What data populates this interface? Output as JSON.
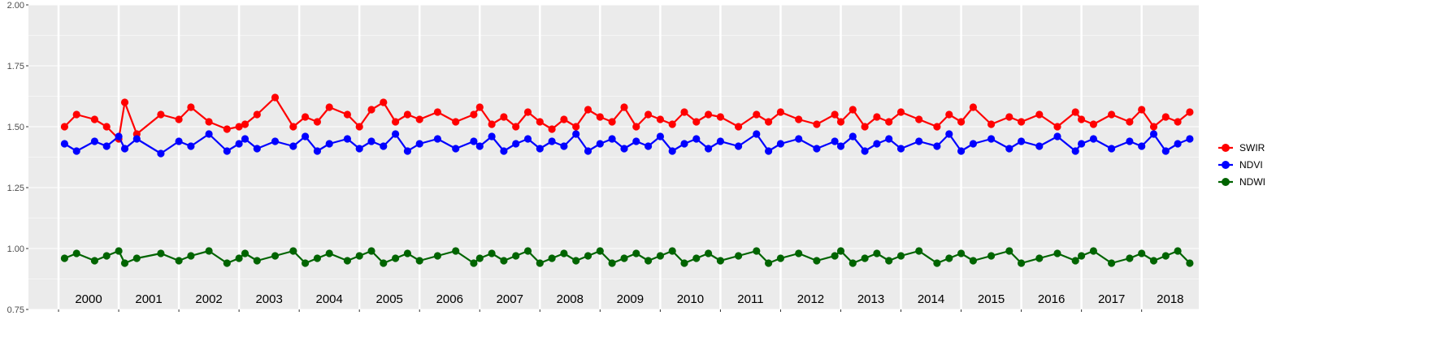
{
  "chart_data": {
    "type": "line",
    "title": "",
    "xlabel": "",
    "ylabel": "",
    "ylim": [
      0.75,
      2.0
    ],
    "yticks": [
      "0.75",
      "1.00",
      "1.25",
      "1.50",
      "1.75",
      "2.00"
    ],
    "xlim": [
      1999.5,
      2018.95
    ],
    "years": [
      "2000",
      "2001",
      "2002",
      "2003",
      "2004",
      "2005",
      "2006",
      "2007",
      "2008",
      "2009",
      "2010",
      "2011",
      "2012",
      "2013",
      "2014",
      "2015",
      "2016",
      "2017",
      "2018"
    ],
    "grid": true,
    "legend_position": "right",
    "series": [
      {
        "name": "SWIR",
        "color": "#ff0000",
        "x": [
          2000.1,
          2000.3,
          2000.6,
          2000.8,
          2001.0,
          2001.1,
          2001.3,
          2001.7,
          2002.0,
          2002.2,
          2002.5,
          2002.8,
          2003.0,
          2003.1,
          2003.3,
          2003.6,
          2003.9,
          2004.1,
          2004.3,
          2004.5,
          2004.8,
          2005.0,
          2005.2,
          2005.4,
          2005.6,
          2005.8,
          2006.0,
          2006.3,
          2006.6,
          2006.9,
          2007.0,
          2007.2,
          2007.4,
          2007.6,
          2007.8,
          2008.0,
          2008.2,
          2008.4,
          2008.6,
          2008.8,
          2009.0,
          2009.2,
          2009.4,
          2009.6,
          2009.8,
          2010.0,
          2010.2,
          2010.4,
          2010.6,
          2010.8,
          2011.0,
          2011.3,
          2011.6,
          2011.8,
          2012.0,
          2012.3,
          2012.6,
          2012.9,
          2013.0,
          2013.2,
          2013.4,
          2013.6,
          2013.8,
          2014.0,
          2014.3,
          2014.6,
          2014.8,
          2015.0,
          2015.2,
          2015.5,
          2015.8,
          2016.0,
          2016.3,
          2016.6,
          2016.9,
          2017.0,
          2017.2,
          2017.5,
          2017.8,
          2018.0,
          2018.2,
          2018.4,
          2018.6,
          2018.8
        ],
        "y": [
          1.5,
          1.55,
          1.53,
          1.5,
          1.45,
          1.6,
          1.47,
          1.55,
          1.53,
          1.58,
          1.52,
          1.49,
          1.5,
          1.51,
          1.55,
          1.62,
          1.5,
          1.54,
          1.52,
          1.58,
          1.55,
          1.5,
          1.57,
          1.6,
          1.52,
          1.55,
          1.53,
          1.56,
          1.52,
          1.55,
          1.58,
          1.51,
          1.54,
          1.5,
          1.56,
          1.52,
          1.49,
          1.53,
          1.5,
          1.57,
          1.54,
          1.52,
          1.58,
          1.5,
          1.55,
          1.53,
          1.51,
          1.56,
          1.52,
          1.55,
          1.54,
          1.5,
          1.55,
          1.52,
          1.56,
          1.53,
          1.51,
          1.55,
          1.52,
          1.57,
          1.5,
          1.54,
          1.52,
          1.56,
          1.53,
          1.5,
          1.55,
          1.52,
          1.58,
          1.51,
          1.54,
          1.52,
          1.55,
          1.5,
          1.56,
          1.53,
          1.51,
          1.55,
          1.52,
          1.57,
          1.5,
          1.54,
          1.52,
          1.56
        ]
      },
      {
        "name": "NDVI",
        "color": "#0000ff",
        "x": [
          2000.1,
          2000.3,
          2000.6,
          2000.8,
          2001.0,
          2001.1,
          2001.3,
          2001.7,
          2002.0,
          2002.2,
          2002.5,
          2002.8,
          2003.0,
          2003.1,
          2003.3,
          2003.6,
          2003.9,
          2004.1,
          2004.3,
          2004.5,
          2004.8,
          2005.0,
          2005.2,
          2005.4,
          2005.6,
          2005.8,
          2006.0,
          2006.3,
          2006.6,
          2006.9,
          2007.0,
          2007.2,
          2007.4,
          2007.6,
          2007.8,
          2008.0,
          2008.2,
          2008.4,
          2008.6,
          2008.8,
          2009.0,
          2009.2,
          2009.4,
          2009.6,
          2009.8,
          2010.0,
          2010.2,
          2010.4,
          2010.6,
          2010.8,
          2011.0,
          2011.3,
          2011.6,
          2011.8,
          2012.0,
          2012.3,
          2012.6,
          2012.9,
          2013.0,
          2013.2,
          2013.4,
          2013.6,
          2013.8,
          2014.0,
          2014.3,
          2014.6,
          2014.8,
          2015.0,
          2015.2,
          2015.5,
          2015.8,
          2016.0,
          2016.3,
          2016.6,
          2016.9,
          2017.0,
          2017.2,
          2017.5,
          2017.8,
          2018.0,
          2018.2,
          2018.4,
          2018.6,
          2018.8
        ],
        "y": [
          1.43,
          1.4,
          1.44,
          1.42,
          1.46,
          1.41,
          1.45,
          1.39,
          1.44,
          1.42,
          1.47,
          1.4,
          1.43,
          1.45,
          1.41,
          1.44,
          1.42,
          1.46,
          1.4,
          1.43,
          1.45,
          1.41,
          1.44,
          1.42,
          1.47,
          1.4,
          1.43,
          1.45,
          1.41,
          1.44,
          1.42,
          1.46,
          1.4,
          1.43,
          1.45,
          1.41,
          1.44,
          1.42,
          1.47,
          1.4,
          1.43,
          1.45,
          1.41,
          1.44,
          1.42,
          1.46,
          1.4,
          1.43,
          1.45,
          1.41,
          1.44,
          1.42,
          1.47,
          1.4,
          1.43,
          1.45,
          1.41,
          1.44,
          1.42,
          1.46,
          1.4,
          1.43,
          1.45,
          1.41,
          1.44,
          1.42,
          1.47,
          1.4,
          1.43,
          1.45,
          1.41,
          1.44,
          1.42,
          1.46,
          1.4,
          1.43,
          1.45,
          1.41,
          1.44,
          1.42,
          1.47,
          1.4,
          1.43,
          1.45
        ]
      },
      {
        "name": "NDWI",
        "color": "#006400",
        "x": [
          2000.1,
          2000.3,
          2000.6,
          2000.8,
          2001.0,
          2001.1,
          2001.3,
          2001.7,
          2002.0,
          2002.2,
          2002.5,
          2002.8,
          2003.0,
          2003.1,
          2003.3,
          2003.6,
          2003.9,
          2004.1,
          2004.3,
          2004.5,
          2004.8,
          2005.0,
          2005.2,
          2005.4,
          2005.6,
          2005.8,
          2006.0,
          2006.3,
          2006.6,
          2006.9,
          2007.0,
          2007.2,
          2007.4,
          2007.6,
          2007.8,
          2008.0,
          2008.2,
          2008.4,
          2008.6,
          2008.8,
          2009.0,
          2009.2,
          2009.4,
          2009.6,
          2009.8,
          2010.0,
          2010.2,
          2010.4,
          2010.6,
          2010.8,
          2011.0,
          2011.3,
          2011.6,
          2011.8,
          2012.0,
          2012.3,
          2012.6,
          2012.9,
          2013.0,
          2013.2,
          2013.4,
          2013.6,
          2013.8,
          2014.0,
          2014.3,
          2014.6,
          2014.8,
          2015.0,
          2015.2,
          2015.5,
          2015.8,
          2016.0,
          2016.3,
          2016.6,
          2016.9,
          2017.0,
          2017.2,
          2017.5,
          2017.8,
          2018.0,
          2018.2,
          2018.4,
          2018.6,
          2018.8
        ],
        "y": [
          0.96,
          0.98,
          0.95,
          0.97,
          0.99,
          0.94,
          0.96,
          0.98,
          0.95,
          0.97,
          0.99,
          0.94,
          0.96,
          0.98,
          0.95,
          0.97,
          0.99,
          0.94,
          0.96,
          0.98,
          0.95,
          0.97,
          0.99,
          0.94,
          0.96,
          0.98,
          0.95,
          0.97,
          0.99,
          0.94,
          0.96,
          0.98,
          0.95,
          0.97,
          0.99,
          0.94,
          0.96,
          0.98,
          0.95,
          0.97,
          0.99,
          0.94,
          0.96,
          0.98,
          0.95,
          0.97,
          0.99,
          0.94,
          0.96,
          0.98,
          0.95,
          0.97,
          0.99,
          0.94,
          0.96,
          0.98,
          0.95,
          0.97,
          0.99,
          0.94,
          0.96,
          0.98,
          0.95,
          0.97,
          0.99,
          0.94,
          0.96,
          0.98,
          0.95,
          0.97,
          0.99,
          0.94,
          0.96,
          0.98,
          0.95,
          0.97,
          0.99,
          0.94,
          0.96,
          0.98,
          0.95,
          0.97,
          0.99,
          0.94
        ]
      }
    ]
  }
}
